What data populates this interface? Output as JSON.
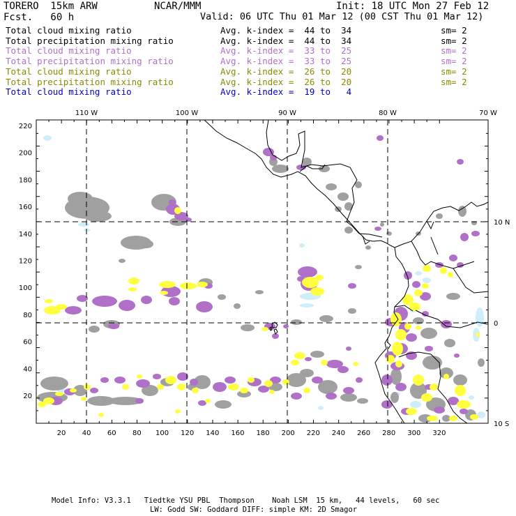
{
  "header": {
    "model": "TORERO  15km ARW",
    "org": "NCAR/MMM",
    "init": "Init: 18 UTC Mon 27 Feb 12",
    "fcst": "Fcst.   60 h",
    "valid": "Valid: 06 UTC Thu 01 Mar 12 (00 CST Thu 01 Mar 12)"
  },
  "legend": [
    {
      "field": "Total cloud mixing ratio",
      "kindex": "Avg. k-index =  44 to  34",
      "sm": "sm= 2",
      "color": "#000000"
    },
    {
      "field": "Total precipitation mixing ratio",
      "kindex": "Avg. k-index =  44 to  34",
      "sm": "sm= 2",
      "color": "#000000"
    },
    {
      "field": "Total cloud mixing ratio",
      "kindex": "Avg. k-index =  33 to  25",
      "sm": "sm= 2",
      "color": "#b070c8"
    },
    {
      "field": "Total precipitation mixing ratio",
      "kindex": "Avg. k-index =  33 to  25",
      "sm": "sm= 2",
      "color": "#b070c8"
    },
    {
      "field": "Total cloud mixing ratio",
      "kindex": "Avg. k-index =  26 to  20",
      "sm": "sm= 2",
      "color": "#8a8a00"
    },
    {
      "field": "Total precipitation mixing ratio",
      "kindex": "Avg. k-index =  26 to  20",
      "sm": "sm= 2",
      "color": "#8a8a00"
    },
    {
      "field": "Total cloud mixing ratio",
      "kindex": "Avg. k-index =  19 to   4",
      "sm": "",
      "color": "#0000cc"
    }
  ],
  "map": {
    "top_lon_labels": [
      "110 W",
      "100 W",
      "90 W",
      "80 W",
      "70 W"
    ],
    "right_lat_labels": [
      "10 N",
      "0",
      "10 S"
    ],
    "y_ticks": [
      "220",
      "200",
      "180",
      "160",
      "140",
      "120",
      "100",
      "80",
      "60",
      "40",
      "20"
    ],
    "x_ticks": [
      "20",
      "40",
      "60",
      "80",
      "100",
      "120",
      "140",
      "160",
      "180",
      "200",
      "220",
      "240",
      "260",
      "280",
      "300",
      "320"
    ],
    "colors": {
      "gray": "#a0a0a0",
      "purple": "#b070c8",
      "yellow": "#ffff40",
      "lightblue": "#cdeefa",
      "coast": "#000000"
    }
  },
  "footer": {
    "line1": "Model Info: V3.3.1   Tiedtke YSU PBL  Thompson    Noah LSM  15 km,   44 levels,   60 sec",
    "line2": "LW: Godd SW: Goddard DIFF: simple KM: 2D Smagor"
  }
}
